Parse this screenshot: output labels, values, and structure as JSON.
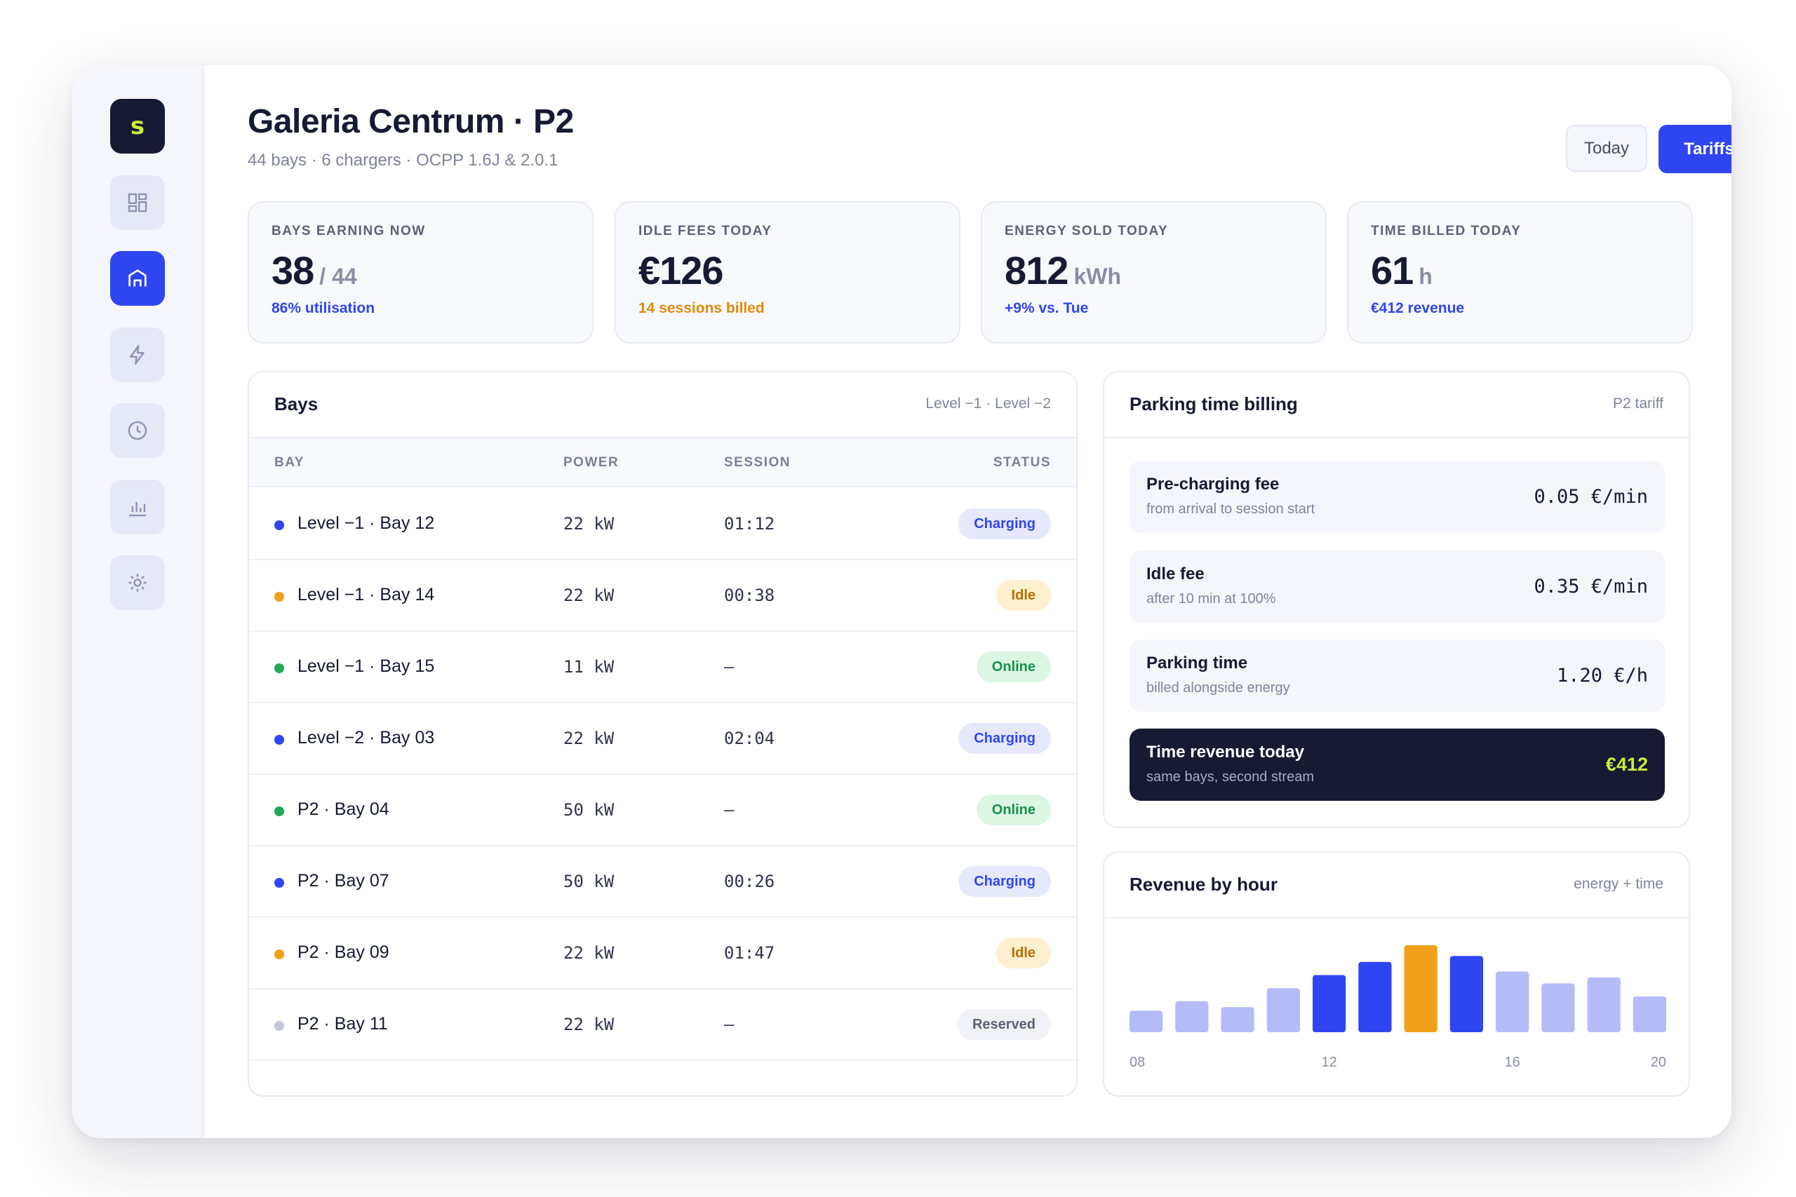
{
  "sidebar": {
    "logo_letter": "s",
    "logo_color": "#c6f03a",
    "items": [
      {
        "name": "dashboard-icon",
        "active": false
      },
      {
        "name": "site-icon",
        "active": true
      },
      {
        "name": "lightning-icon",
        "active": false
      },
      {
        "name": "clock-icon",
        "active": false
      },
      {
        "name": "bar-chart-icon",
        "active": false
      },
      {
        "name": "settings-icon",
        "active": false
      }
    ]
  },
  "header": {
    "title": "Galeria Centrum · P2",
    "subtitle": "44 bays · 6 chargers · OCPP 1.6J & 2.0.1",
    "today_label": "Today",
    "tariffs_label": "Tariffs"
  },
  "kpis": [
    {
      "label": "BAYS EARNING NOW",
      "value": "38",
      "unit": "/ 44",
      "note": "86% utilisation",
      "note_color": "#2f45f2"
    },
    {
      "label": "IDLE FEES TODAY",
      "value": "€126",
      "unit": "",
      "note": "14 sessions billed",
      "note_color": "#e08a0b"
    },
    {
      "label": "ENERGY SOLD TODAY",
      "value": "812",
      "unit": "kWh",
      "note": "+9% vs. Tue",
      "note_color": "#2f45f2"
    },
    {
      "label": "TIME BILLED TODAY",
      "value": "61",
      "unit": "h",
      "note": "€412 revenue",
      "note_color": "#2f45f2"
    }
  ],
  "bays": {
    "title": "Bays",
    "hint": "Level −1 · Level −2",
    "columns": {
      "bay": "BAY",
      "power": "POWER",
      "session": "SESSION",
      "status": "STATUS"
    },
    "rows": [
      {
        "bay": "Level −1 · Bay 12",
        "power": "22 kW",
        "session": "01:12",
        "status": "Charging",
        "kind": "charging"
      },
      {
        "bay": "Level −1 · Bay 14",
        "power": "22 kW",
        "session": "00:38",
        "status": "Idle",
        "kind": "idle"
      },
      {
        "bay": "Level −1 · Bay 15",
        "power": "11 kW",
        "session": "—",
        "status": "Online",
        "kind": "online"
      },
      {
        "bay": "Level −2 · Bay 03",
        "power": "22 kW",
        "session": "02:04",
        "status": "Charging",
        "kind": "charging"
      },
      {
        "bay": "P2 · Bay 04",
        "power": "50 kW",
        "session": "—",
        "status": "Online",
        "kind": "online"
      },
      {
        "bay": "P2 · Bay 07",
        "power": "50 kW",
        "session": "00:26",
        "status": "Charging",
        "kind": "charging"
      },
      {
        "bay": "P2 · Bay 09",
        "power": "22 kW",
        "session": "01:47",
        "status": "Idle",
        "kind": "idle"
      },
      {
        "bay": "P2 · Bay 11",
        "power": "22 kW",
        "session": "—",
        "status": "Reserved",
        "kind": "reserved"
      }
    ],
    "status_colors": {
      "charging": {
        "dot": "#2f45f2",
        "bg": "#e6e9fb",
        "fg": "#2f45f2"
      },
      "idle": {
        "dot": "#f0a01a",
        "bg": "#fdf0cf",
        "fg": "#b86e00"
      },
      "online": {
        "dot": "#1faa55",
        "bg": "#dcf6e4",
        "fg": "#16924a"
      },
      "reserved": {
        "dot": "#c3c7d8",
        "bg": "#f1f2f7",
        "fg": "#5d6176"
      }
    }
  },
  "billing": {
    "title": "Parking time billing",
    "hint": "P2 tariff",
    "rates": [
      {
        "name": "Pre-charging fee",
        "desc": "from arrival to session start",
        "price": "0.05 €/min"
      },
      {
        "name": "Idle fee",
        "desc": "after 10 min at 100%",
        "price": "0.35 €/min"
      },
      {
        "name": "Parking time",
        "desc": "billed alongside energy",
        "price": "1.20 €/h"
      }
    ],
    "total": {
      "name": "Time revenue today",
      "desc": "same bays, second stream",
      "price": "€412"
    }
  },
  "revenue": {
    "title": "Revenue by hour",
    "hint": "energy + time"
  },
  "chart_data": {
    "type": "bar",
    "title": "Revenue by hour",
    "x_tick_labels": [
      "08",
      "12",
      "16",
      "20"
    ],
    "x": [
      8,
      9,
      10,
      11,
      12,
      13,
      14,
      15,
      16,
      17,
      18,
      19
    ],
    "values": [
      18,
      26,
      21,
      37,
      48,
      59,
      73,
      64,
      51,
      41,
      46,
      30
    ],
    "highlight": [
      "low",
      "low",
      "low",
      "low",
      "high",
      "high",
      "peak",
      "high",
      "low",
      "low",
      "low",
      "low"
    ],
    "colors": {
      "low": "#b4bbf6",
      "high": "#2f45f2",
      "peak": "#f0a01a"
    },
    "grid": false,
    "legend": "none"
  }
}
